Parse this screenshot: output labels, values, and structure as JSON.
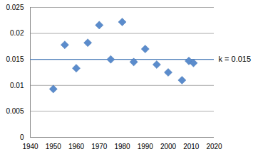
{
  "chart_data": {
    "type": "scatter",
    "x": [
      1950,
      1955,
      1960,
      1965,
      1970,
      1975,
      1980,
      1985,
      1990,
      1995,
      2000,
      2006,
      2009,
      2011
    ],
    "values": [
      0.0093,
      0.0178,
      0.0133,
      0.0182,
      0.0216,
      0.015,
      0.0222,
      0.0145,
      0.017,
      0.014,
      0.0125,
      0.011,
      0.0147,
      0.0143
    ],
    "color": "#5b8ccc",
    "marker": "diamond",
    "xlim": [
      1940,
      2020
    ],
    "xticks": [
      1940,
      1950,
      1960,
      1970,
      1980,
      1990,
      2000,
      2010,
      2020
    ],
    "ylim": [
      0,
      0.025
    ],
    "yticks": [
      0,
      0.005,
      0.01,
      0.015,
      0.02,
      0.025
    ],
    "grid": true,
    "annotations": [
      {
        "text": "k = 0.015",
        "y": 0.015
      }
    ]
  }
}
